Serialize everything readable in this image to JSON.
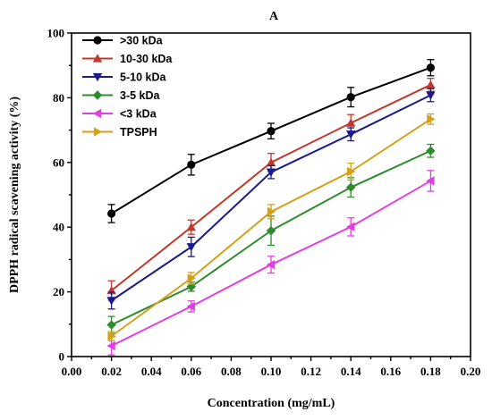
{
  "chart_data": {
    "type": "line",
    "panel_label": "A",
    "xlabel": "Concentration (mg/mL)",
    "ylabel": "DPPH radical scavening activity (%)",
    "xlim": [
      0.0,
      0.2
    ],
    "ylim": [
      0,
      100
    ],
    "x_ticks": [
      "0.00",
      "0.02",
      "0.04",
      "0.06",
      "0.08",
      "0.10",
      "0.12",
      "0.14",
      "0.16",
      "0.18",
      "0.20"
    ],
    "y_ticks": [
      "0",
      "20",
      "40",
      "60",
      "80",
      "100"
    ],
    "grid": false,
    "legend_position": "top-left",
    "x": [
      0.02,
      0.06,
      0.1,
      0.14,
      0.18
    ],
    "series": [
      {
        "name": ">30 kDa",
        "color": "#000000",
        "marker": "circle",
        "values": [
          44.2,
          59.3,
          69.7,
          80.2,
          89.3
        ],
        "errors": [
          2.8,
          3.2,
          2.4,
          3.0,
          2.5
        ]
      },
      {
        "name": "10-30 kDa",
        "color": "#c0392b",
        "marker": "triangle-up",
        "values": [
          20.4,
          40.0,
          60.0,
          72.2,
          84.0
        ],
        "errors": [
          3.0,
          2.2,
          2.8,
          2.6,
          2.0
        ]
      },
      {
        "name": "5-10 kDa",
        "color": "#1a1a8c",
        "marker": "triangle-down",
        "values": [
          17.3,
          33.9,
          57.0,
          68.7,
          80.8
        ],
        "errors": [
          2.6,
          3.0,
          2.0,
          2.0,
          2.0
        ]
      },
      {
        "name": "3-5 kDa",
        "color": "#2e8b2e",
        "marker": "diamond",
        "values": [
          9.8,
          21.6,
          38.9,
          52.3,
          63.6
        ],
        "errors": [
          2.6,
          1.4,
          4.5,
          3.0,
          2.0
        ]
      },
      {
        "name": "<3 kDa",
        "color": "#e040e0",
        "marker": "triangle-left",
        "values": [
          3.3,
          15.5,
          28.4,
          40.1,
          54.3
        ],
        "errors": [
          2.8,
          1.7,
          2.6,
          2.8,
          3.2
        ]
      },
      {
        "name": "TPSPH",
        "color": "#d4a017",
        "marker": "triangle-right",
        "values": [
          6.3,
          24.2,
          44.8,
          57.2,
          73.4
        ],
        "errors": [
          1.4,
          1.8,
          2.2,
          2.6,
          1.6
        ]
      }
    ]
  }
}
